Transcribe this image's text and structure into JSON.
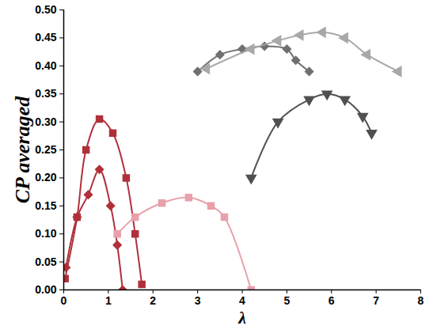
{
  "chart_data": {
    "type": "line",
    "x_label": "λ",
    "y_label": "CP averaged",
    "xlim": [
      0,
      8
    ],
    "xticks": [
      0,
      1,
      2,
      3,
      4,
      5,
      6,
      7,
      8
    ],
    "ylim": [
      0,
      0.5
    ],
    "yticks": [
      {
        "value": 0,
        "label": "0.00"
      },
      {
        "value": 0.05,
        "label": "0.05"
      },
      {
        "value": 0.1,
        "label": "0.10"
      },
      {
        "value": 0.15,
        "label": "0.15"
      },
      {
        "value": 0.2,
        "label": "0.20"
      },
      {
        "value": 0.25,
        "label": "0.25"
      },
      {
        "value": 0.3,
        "label": "0.30"
      },
      {
        "value": 0.35,
        "label": "0.35"
      },
      {
        "value": 0.4,
        "label": "0.40"
      },
      {
        "value": 0.45,
        "label": "0.45"
      },
      {
        "value": 0.5,
        "label": "0.50"
      }
    ],
    "grid": false,
    "series": [
      {
        "color": "#b0303a",
        "marker": "square",
        "x": [
          0.03,
          0.3,
          0.5,
          0.8,
          1.1,
          1.4,
          1.6,
          1.75
        ],
        "values": [
          0.02,
          0.13,
          0.25,
          0.305,
          0.28,
          0.2,
          0.1,
          0.01
        ]
      },
      {
        "color": "#b0303a",
        "marker": "diamond",
        "x": [
          0.05,
          0.3,
          0.55,
          0.8,
          1.05,
          1.2,
          1.32
        ],
        "values": [
          0.04,
          0.13,
          0.17,
          0.215,
          0.15,
          0.08,
          0.0
        ]
      },
      {
        "color": "#e8a0aa",
        "marker": "square",
        "x": [
          1.2,
          1.6,
          2.2,
          2.8,
          3.3,
          3.6,
          4.2
        ],
        "values": [
          0.1,
          0.13,
          0.155,
          0.165,
          0.15,
          0.13,
          0.0
        ]
      },
      {
        "color": "#707070",
        "marker": "diamond",
        "x": [
          3.0,
          3.5,
          4.0,
          4.5,
          5.0,
          5.2,
          5.5
        ],
        "values": [
          0.39,
          0.42,
          0.43,
          0.435,
          0.43,
          0.41,
          0.39
        ]
      },
      {
        "color": "#a8a8a8",
        "marker": "triangle-left",
        "x": [
          3.2,
          4.2,
          4.8,
          5.3,
          5.8,
          6.3,
          6.8,
          7.5
        ],
        "values": [
          0.395,
          0.43,
          0.445,
          0.455,
          0.46,
          0.45,
          0.42,
          0.39
        ]
      },
      {
        "color": "#505050",
        "marker": "triangle-down",
        "x": [
          4.2,
          4.8,
          5.5,
          5.9,
          6.3,
          6.7,
          6.9
        ],
        "values": [
          0.2,
          0.3,
          0.34,
          0.35,
          0.34,
          0.31,
          0.28
        ]
      }
    ]
  }
}
